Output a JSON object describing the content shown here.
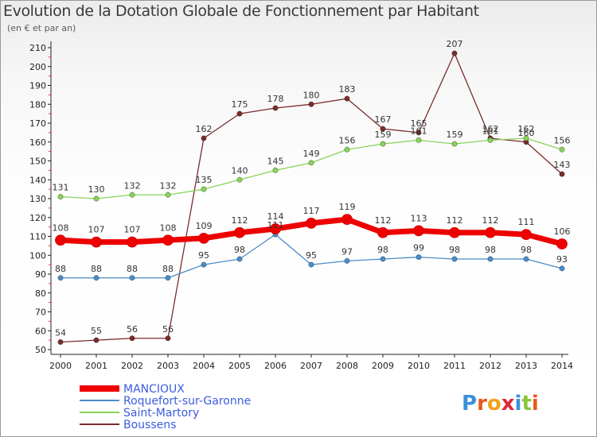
{
  "title": "Evolution de la Dotation Globale de Fonctionnement par Habitant",
  "subtitle": "(en € et par an)",
  "logo": "Proxiti",
  "chart_data": {
    "type": "line",
    "title": "Evolution de la Dotation Globale de Fonctionnement par Habitant",
    "subtitle": "(en € et par an)",
    "x": [
      2000,
      2001,
      2002,
      2003,
      2004,
      2005,
      2006,
      2007,
      2008,
      2009,
      2010,
      2011,
      2012,
      2013,
      2014
    ],
    "ylim": [
      50,
      210
    ],
    "yticks": [
      50,
      60,
      70,
      80,
      90,
      100,
      110,
      120,
      130,
      140,
      150,
      160,
      170,
      180,
      190,
      200,
      210
    ],
    "grid": false,
    "legend_position": "bottom-left",
    "series": [
      {
        "name": "MANCIOUX",
        "color": "#ee0000",
        "values": [
          108,
          107,
          107,
          108,
          109,
          112,
          114,
          117,
          119,
          112,
          113,
          112,
          112,
          111,
          106
        ]
      },
      {
        "name": "Roquefort-sur-Garonne",
        "color": "#4a8cc8",
        "values": [
          88,
          88,
          88,
          88,
          95,
          98,
          111,
          95,
          97,
          98,
          99,
          98,
          98,
          98,
          93
        ]
      },
      {
        "name": "Saint-Martory",
        "color": "#88d45a",
        "values": [
          131,
          130,
          132,
          132,
          135,
          140,
          145,
          149,
          156,
          159,
          161,
          159,
          161,
          162,
          156
        ]
      },
      {
        "name": "Boussens",
        "color": "#7a2c2c",
        "values": [
          54,
          55,
          56,
          56,
          162,
          175,
          178,
          180,
          183,
          167,
          165,
          207,
          162,
          160,
          143
        ]
      }
    ]
  }
}
